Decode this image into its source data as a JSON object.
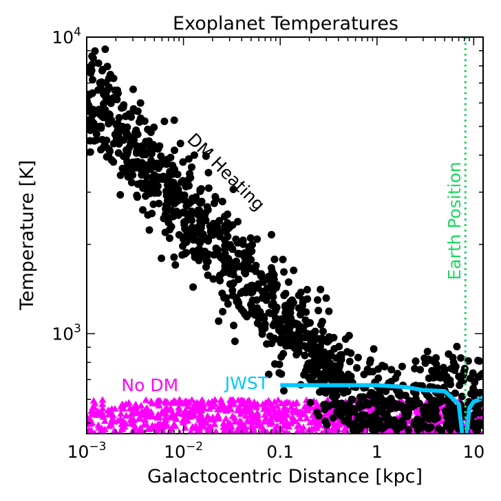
{
  "chart_data": {
    "type": "scatter",
    "title": "Exoplanet Temperatures",
    "xlabel": "Galactocentric Distance [kpc]",
    "ylabel": "Temperature [K]",
    "xscale": "log",
    "yscale": "log",
    "xlim": [
      0.001,
      12.5
    ],
    "ylim": [
      460,
      10000
    ],
    "x_ticks": [
      {
        "value": 0.001,
        "base": "10",
        "exp": "−3"
      },
      {
        "value": 0.01,
        "base": "10",
        "exp": "−2"
      },
      {
        "value": 0.1,
        "label": "0.1"
      },
      {
        "value": 1,
        "label": "1"
      },
      {
        "value": 10,
        "label": "10"
      }
    ],
    "y_ticks": [
      {
        "value": 1000,
        "base": "10",
        "exp": "3"
      },
      {
        "value": 10000,
        "base": "10",
        "exp": "4"
      }
    ],
    "series": [
      {
        "name": "DM Heating",
        "marker": "circle",
        "color": "#000000",
        "n_points": 1300,
        "trend": "T ≈ 6500·(r/0.001)^−0.38 K with ≈0.26 dex scatter, flattening to ≈560 K beyond r ≈ 1 kpc",
        "sample_points": [
          [
            0.001,
            6500
          ],
          [
            0.003,
            4800
          ],
          [
            0.01,
            3200
          ],
          [
            0.03,
            2100
          ],
          [
            0.1,
            1400
          ],
          [
            0.3,
            900
          ],
          [
            1,
            640
          ],
          [
            3,
            580
          ],
          [
            10,
            560
          ]
        ]
      },
      {
        "name": "No DM",
        "marker": "triangle",
        "color": "#ff00ff",
        "n_points": 900,
        "trend": "scattered uniformly between ≈460 K and ≈600 K across all distances",
        "sample_points": [
          [
            0.001,
            520
          ],
          [
            0.01,
            530
          ],
          [
            0.1,
            515
          ],
          [
            1,
            540
          ],
          [
            10,
            525
          ]
        ]
      },
      {
        "name": "JWST",
        "type": "line",
        "color": "#00c8ff",
        "x": [
          0.1,
          1.0,
          2.0,
          3.0,
          5.0,
          7.0,
          7.6,
          8.0,
          8.5,
          9.0,
          10.0,
          11.5,
          12.5
        ],
        "y": [
          670,
          670,
          660,
          645,
          640,
          580,
          460,
          460,
          460,
          560,
          590,
          600,
          610
        ]
      },
      {
        "name": "Earth Position",
        "type": "vline",
        "style": "dotted",
        "color": "#1ed760",
        "x": 8.2
      }
    ],
    "annotations": [
      {
        "text": "DM Heating",
        "color": "#000000",
        "x": 0.025,
        "y": 3400,
        "rotation": 45
      },
      {
        "text": "No DM",
        "color": "#ff00ff",
        "x": 0.0045,
        "y": 640,
        "rotation": 0
      },
      {
        "text": "JWST",
        "color": "#00c8ff",
        "x": 0.045,
        "y": 650,
        "rotation": 0
      },
      {
        "text": "Earth Position",
        "color": "#1ed760",
        "x": 7.3,
        "y": 2400,
        "rotation": -90
      }
    ],
    "grid": false,
    "legend": "none"
  }
}
